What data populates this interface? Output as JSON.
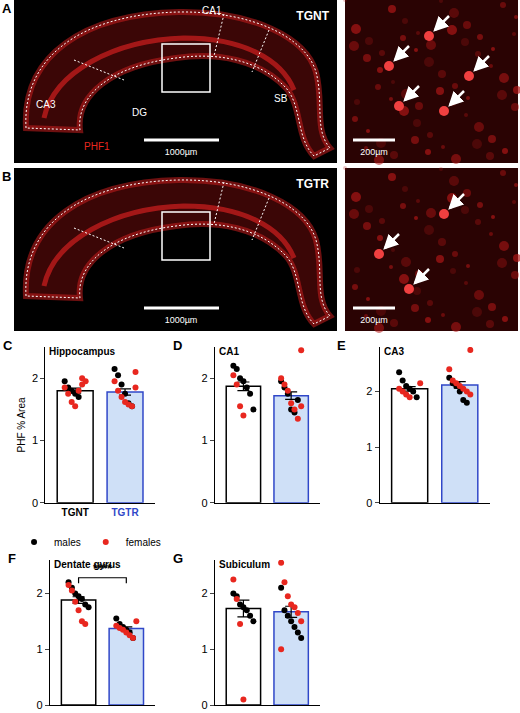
{
  "images": [
    {
      "letter": "A",
      "group": "TGNT",
      "regions": [
        "CA1",
        "CA3",
        "DG",
        "SB"
      ],
      "stain": "PHF1",
      "scale_bar": "1000µm",
      "inset_scale_bar": "200µm"
    },
    {
      "letter": "B",
      "group": "TGTR",
      "scale_bar": "1000µm",
      "inset_scale_bar": "200µm"
    }
  ],
  "chart_data": [
    {
      "type": "bar",
      "panel": "C",
      "title": "Hippocampus",
      "y_label": "PHF % Area",
      "categories": [
        "TGNT",
        "TGTR"
      ],
      "values": [
        1.8,
        1.78
      ],
      "errors": [
        0.04,
        0.05
      ],
      "colors": [
        "#ffffff",
        "#cfe0f7"
      ],
      "ylim": [
        0,
        2.5
      ],
      "yticks": [
        0,
        1,
        2
      ],
      "legend": "bottom",
      "series": [
        {
          "name": "males",
          "type": "scatter",
          "color": "#000000",
          "values": [
            [
              1.95,
              1.85,
              1.8,
              1.75,
              1.7
            ],
            [
              2.15,
              2.05,
              1.9,
              1.75,
              1.6,
              1.55
            ]
          ]
        },
        {
          "name": "females",
          "type": "scatter",
          "color": "#e8271f",
          "values": [
            [
              2.0,
              1.95,
              1.85,
              1.75,
              1.62,
              1.55,
              1.8,
              1.9
            ],
            [
              2.1,
              1.95,
              1.8,
              1.7,
              1.62,
              1.58,
              1.55,
              1.85
            ]
          ]
        }
      ]
    },
    {
      "type": "bar",
      "panel": "D",
      "title": "CA1",
      "categories": [
        "TGNT",
        "TGTR"
      ],
      "tick_labels": "y",
      "values": [
        1.87,
        1.72
      ],
      "errors": [
        0.07,
        0.06
      ],
      "colors": [
        "#ffffff",
        "#cfe0f7"
      ],
      "ylim": [
        0,
        2.5
      ],
      "yticks": [
        0,
        1,
        2
      ],
      "series": [
        {
          "name": "males",
          "type": "scatter",
          "color": "#000000",
          "values": [
            [
              2.2,
              2.15,
              2.0,
              1.95,
              1.85,
              1.75,
              1.5
            ],
            [
              1.95,
              1.85,
              1.75,
              1.5,
              1.45,
              1.65
            ]
          ]
        },
        {
          "name": "females",
          "type": "scatter",
          "color": "#e8271f",
          "values": [
            [
              2.05,
              1.9,
              1.55,
              1.4
            ],
            [
              2.45,
              2.0,
              1.9,
              1.8,
              1.6,
              1.5,
              1.35,
              1.55
            ]
          ]
        }
      ]
    },
    {
      "type": "bar",
      "panel": "E",
      "title": "CA3",
      "categories": [
        "TGNT",
        "TGTR"
      ],
      "tick_labels": "y",
      "values": [
        2.05,
        2.12
      ],
      "errors": [
        0.04,
        0.06
      ],
      "colors": [
        "#ffffff",
        "#cfe0f7"
      ],
      "ylim": [
        0,
        2.8
      ],
      "yticks": [
        0,
        1,
        2
      ],
      "series": [
        {
          "name": "males",
          "type": "scatter",
          "color": "#000000",
          "values": [
            [
              2.35,
              2.2,
              2.1,
              2.05,
              2.0,
              1.9
            ],
            [
              2.25,
              2.15,
              2.1,
              2.0,
              1.85,
              1.8
            ]
          ]
        },
        {
          "name": "females",
          "type": "scatter",
          "color": "#e8271f",
          "values": [
            [
              2.15,
              2.05,
              2.0,
              1.95,
              1.9
            ],
            [
              2.75,
              2.4,
              2.2,
              2.15,
              2.1,
              2.05,
              2.0,
              1.95
            ]
          ]
        }
      ]
    },
    {
      "type": "bar",
      "panel": "F",
      "title": "Dentate gyrus",
      "categories": [
        "TGNT",
        "TGTR"
      ],
      "tick_labels": "y",
      "values": [
        1.88,
        1.37
      ],
      "errors": [
        0.06,
        0.03
      ],
      "colors": [
        "#ffffff",
        "#cfe0f7"
      ],
      "ylim": [
        0,
        2.6
      ],
      "yticks": [
        0,
        1,
        2
      ],
      "annotations": [
        {
          "text": "****"
        }
      ],
      "series": [
        {
          "name": "males",
          "type": "scatter",
          "color": "#000000",
          "values": [
            [
              2.2,
              2.1,
              2.0,
              1.95,
              1.9,
              1.8,
              1.75
            ],
            [
              1.55,
              1.45,
              1.4,
              1.35,
              1.3,
              1.2
            ]
          ]
        },
        {
          "name": "females",
          "type": "scatter",
          "color": "#e8271f",
          "values": [
            [
              2.15,
              2.05,
              1.85,
              1.7,
              1.5,
              1.45
            ],
            [
              1.5,
              1.42,
              1.38,
              1.35,
              1.3,
              1.25,
              1.2
            ]
          ]
        }
      ]
    },
    {
      "type": "bar",
      "panel": "G",
      "title": "Subiculum",
      "categories": [
        "TGNT",
        "TGTR"
      ],
      "tick_labels": "y",
      "values": [
        1.73,
        1.67
      ],
      "errors": [
        0.15,
        0.1
      ],
      "colors": [
        "#ffffff",
        "#cfe0f7"
      ],
      "ylim": [
        0,
        2.6
      ],
      "yticks": [
        0,
        1,
        2
      ],
      "series": [
        {
          "name": "males",
          "type": "scatter",
          "color": "#000000",
          "values": [
            [
              2.0,
              1.95,
              1.8,
              1.75,
              1.7,
              1.6,
              1.5
            ],
            [
              2.1,
              1.7,
              1.6,
              1.5,
              1.4,
              1.3,
              1.2
            ]
          ]
        },
        {
          "name": "females",
          "type": "scatter",
          "color": "#e8271f",
          "values": [
            [
              2.25,
              1.9,
              1.45,
              0.1
            ],
            [
              2.55,
              2.2,
              1.95,
              1.8,
              1.75,
              1.65,
              1.5,
              1.0
            ]
          ]
        }
      ]
    }
  ]
}
